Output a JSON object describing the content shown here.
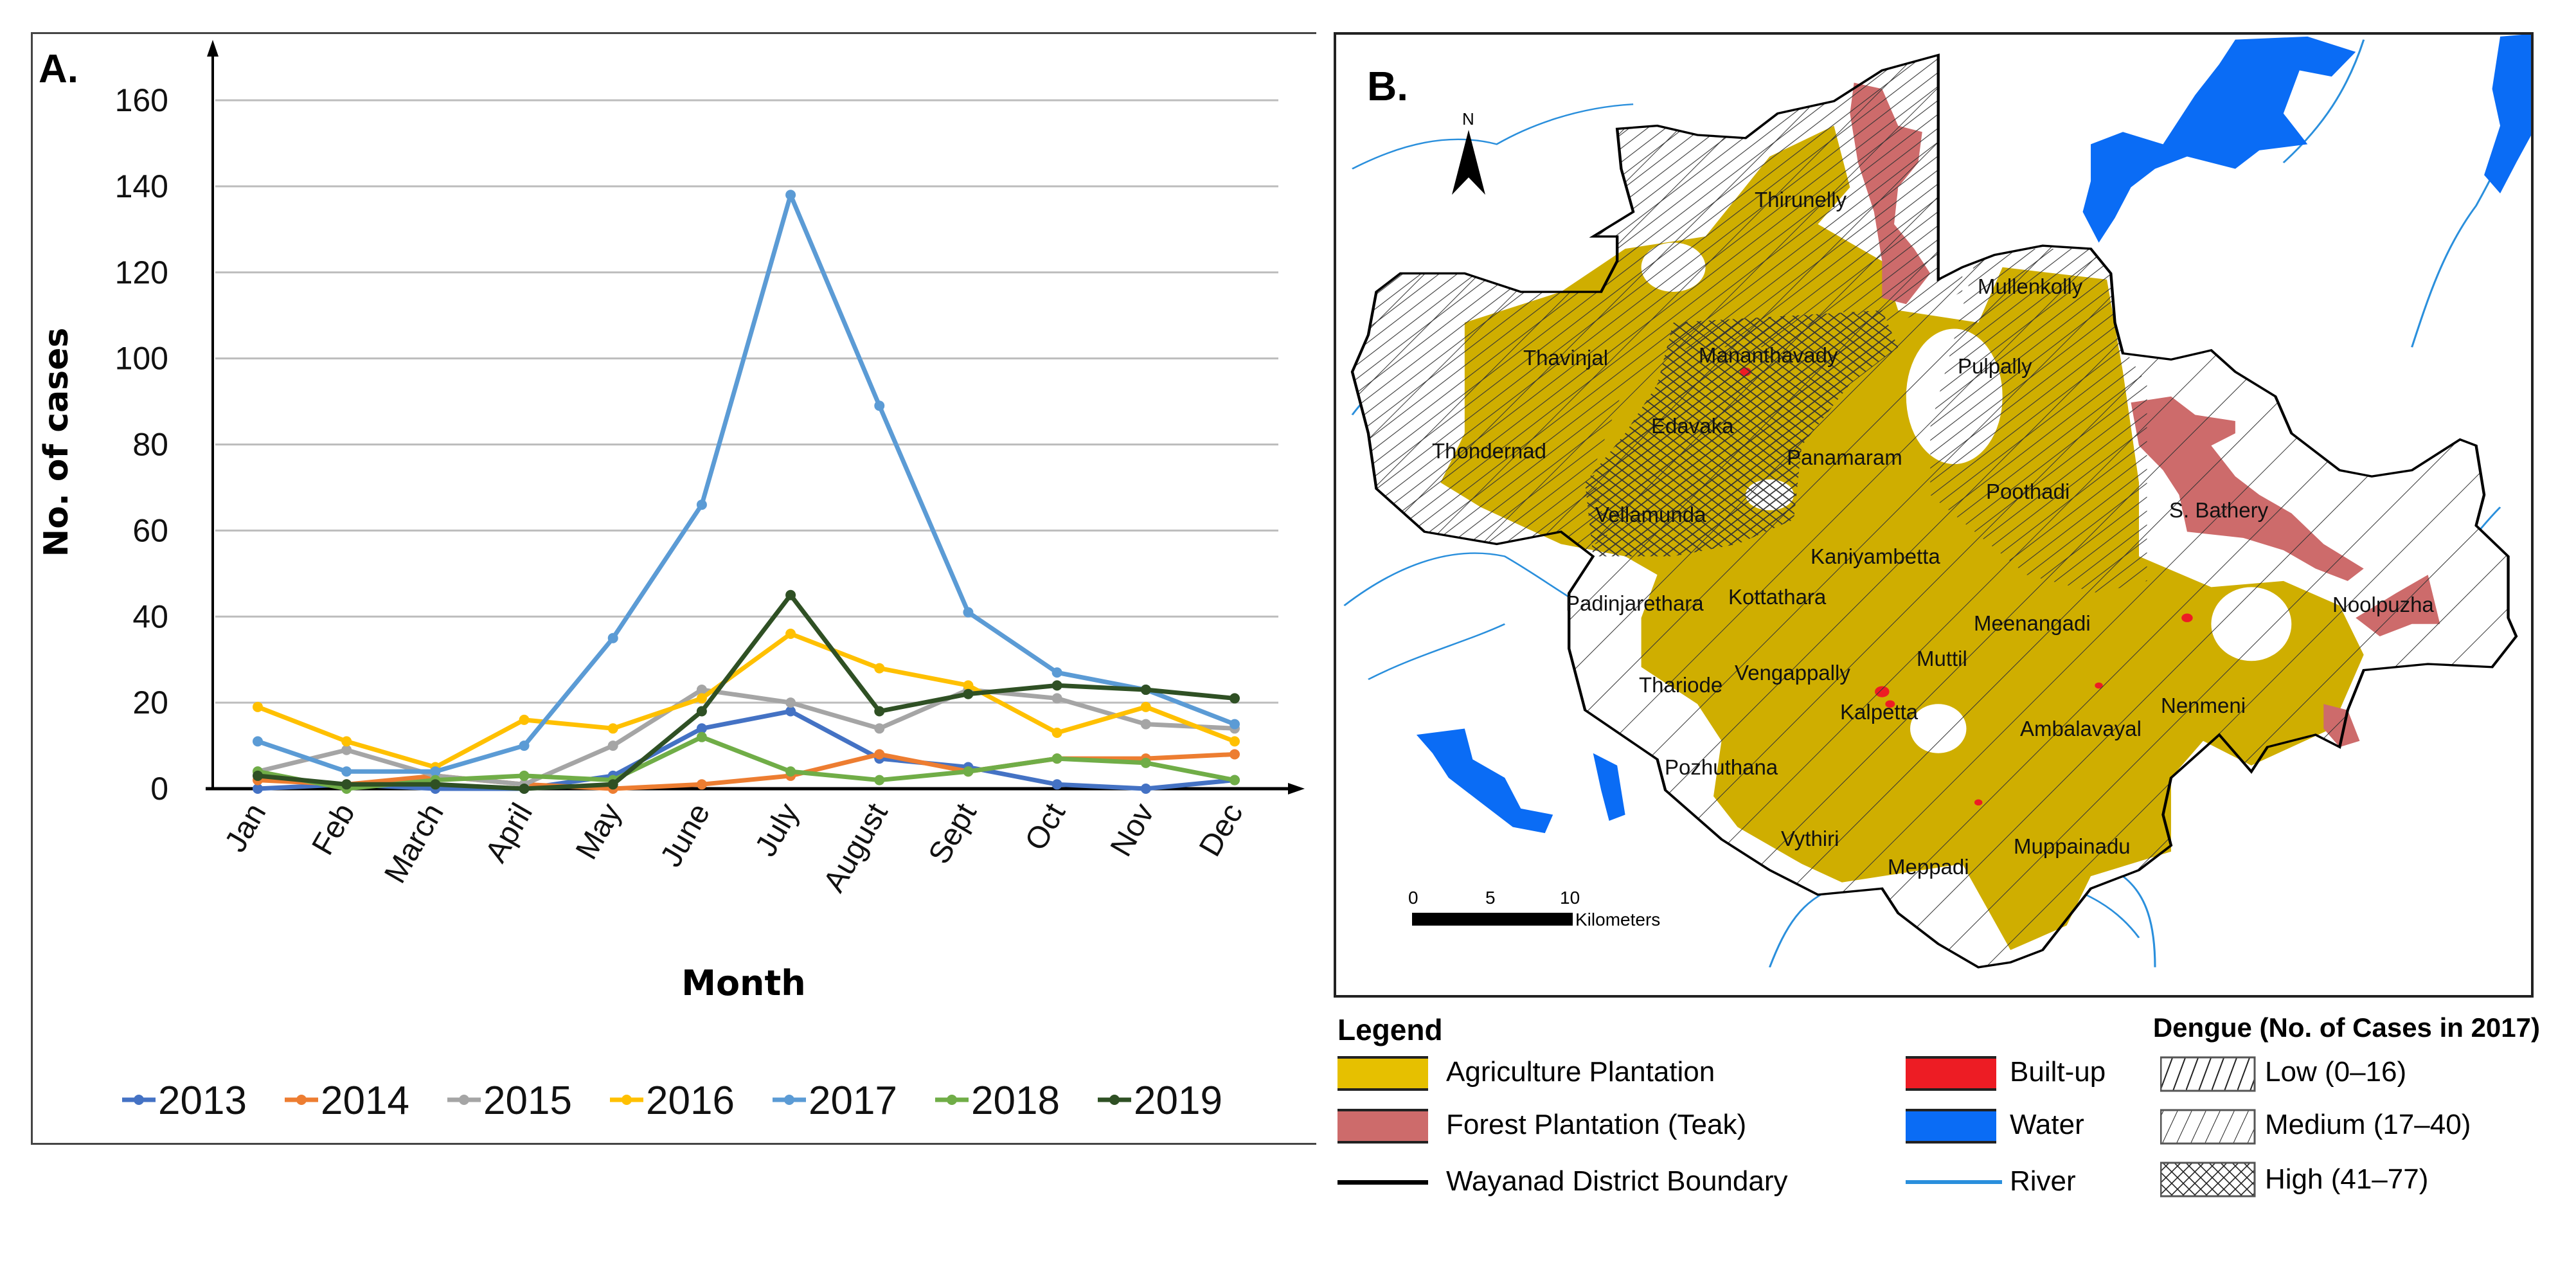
{
  "chart_data": {
    "type": "line",
    "panel_label": "A.",
    "title": "",
    "xlabel": "Month",
    "ylabel": "No. of cases",
    "categories": [
      "Jan",
      "Feb",
      "March",
      "April",
      "May",
      "June",
      "July",
      "August",
      "Sept",
      "Oct",
      "Nov",
      "Dec"
    ],
    "ylim": [
      0,
      160
    ],
    "yticks": [
      0,
      20,
      40,
      60,
      80,
      100,
      120,
      140,
      160
    ],
    "grid": true,
    "legend_position": "bottom",
    "series": [
      {
        "name": "2013",
        "color": "#4472c4",
        "values": [
          0,
          1,
          0,
          0,
          3,
          14,
          18,
          7,
          5,
          1,
          0,
          2
        ]
      },
      {
        "name": "2014",
        "color": "#ed7d31",
        "values": [
          2,
          1,
          3,
          1,
          0,
          1,
          3,
          8,
          4,
          7,
          7,
          8
        ]
      },
      {
        "name": "2015",
        "color": "#a5a5a5",
        "values": [
          4,
          9,
          3,
          1,
          10,
          23,
          20,
          14,
          23,
          21,
          15,
          14
        ]
      },
      {
        "name": "2016",
        "color": "#ffc000",
        "values": [
          19,
          11,
          5,
          16,
          14,
          21,
          36,
          28,
          24,
          13,
          19,
          11
        ]
      },
      {
        "name": "2017",
        "color": "#5b9bd5",
        "values": [
          11,
          4,
          4,
          10,
          35,
          66,
          138,
          89,
          41,
          27,
          23,
          15
        ]
      },
      {
        "name": "2018",
        "color": "#70ad47",
        "values": [
          4,
          0,
          2,
          3,
          2,
          12,
          4,
          2,
          4,
          7,
          6,
          2
        ]
      },
      {
        "name": "2019",
        "color": "#2f5024",
        "values": [
          3,
          1,
          1,
          0,
          1,
          18,
          45,
          18,
          22,
          24,
          23,
          21
        ]
      }
    ]
  },
  "map": {
    "panel_label": "B.",
    "north": "N",
    "scale": {
      "ticks": [
        "0",
        "5",
        "10"
      ],
      "unit": "Kilometers"
    },
    "places": [
      "Thirunelly",
      "Mullenkolly",
      "Thavinjal",
      "Mananthavady",
      "Pulpally",
      "Edavaka",
      "Thondernad",
      "Panamaram",
      "Poothadi",
      "S. Bathery",
      "Vellamunda",
      "Kaniyambetta",
      "Padinjarethara",
      "Kottathara",
      "Meenangadi",
      "Noolpuzha",
      "Thariode",
      "Vengappally",
      "Muttil",
      "Kalpetta",
      "Ambalavayal",
      "Nenmeni",
      "Pozhuthana",
      "Vythiri",
      "Meppadi",
      "Muppainadu"
    ],
    "colors": {
      "agriculture": "#cfae00",
      "teak": "#cd6b6b",
      "builtup": "#ed1c24",
      "water": "#0a6cf5",
      "river": "#2a8fdc"
    }
  },
  "legend": {
    "title": "Legend",
    "dengue_title": "Dengue (No. of Cases in 2017)",
    "agriculture": "Agriculture Plantation",
    "teak": "Forest Plantation (Teak)",
    "boundary": "Wayanad District Boundary",
    "builtup": "Built-up",
    "water": "Water",
    "river": "River",
    "low": "Low (0–16)",
    "medium": "Medium (17–40)",
    "high": "High (41–77)"
  }
}
